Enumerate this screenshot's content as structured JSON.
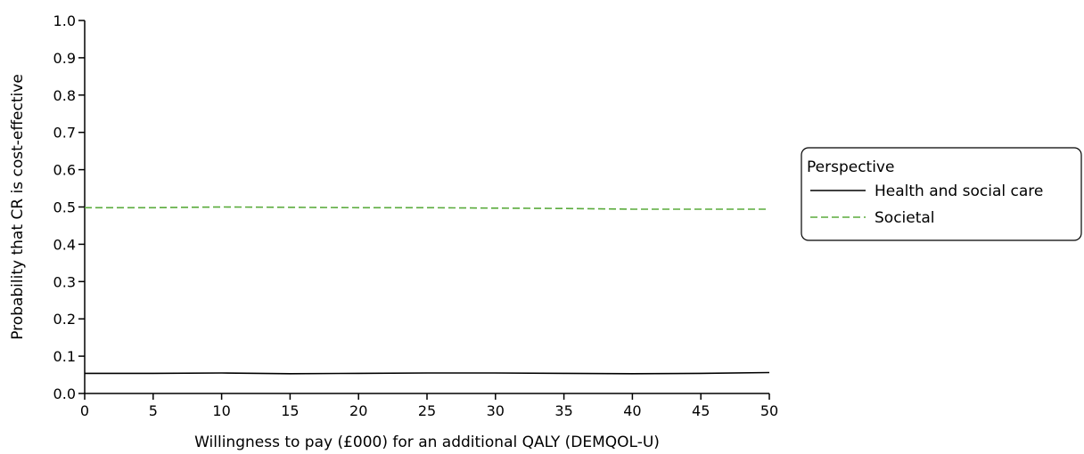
{
  "chart_data": {
    "type": "line",
    "xlabel": "Willingness to pay (£000) for an additional QALY (DEMQOL-U)",
    "ylabel": "Probability that CR is cost-effective",
    "xlim": [
      0,
      50
    ],
    "ylim": [
      0,
      1.0
    ],
    "x_ticks": [
      "0",
      "5",
      "10",
      "15",
      "20",
      "25",
      "30",
      "35",
      "40",
      "45",
      "50"
    ],
    "y_ticks": [
      "0.0",
      "0.1",
      "0.2",
      "0.3",
      "0.4",
      "0.5",
      "0.6",
      "0.7",
      "0.8",
      "0.9",
      "1.0"
    ],
    "grid": false,
    "legend": {
      "title": "Perspective",
      "placement": "right"
    },
    "x": [
      0,
      5,
      10,
      15,
      20,
      25,
      30,
      35,
      40,
      45,
      50
    ],
    "series": [
      {
        "name": "Health and social care",
        "color": "#000000",
        "dash": "solid",
        "values": [
          0.054,
          0.054,
          0.055,
          0.053,
          0.054,
          0.055,
          0.055,
          0.054,
          0.053,
          0.054,
          0.056
        ]
      },
      {
        "name": "Societal",
        "color": "#5aab3c",
        "dash": "dashed",
        "values": [
          0.498,
          0.498,
          0.5,
          0.499,
          0.498,
          0.498,
          0.497,
          0.496,
          0.494,
          0.494,
          0.494
        ]
      }
    ]
  }
}
